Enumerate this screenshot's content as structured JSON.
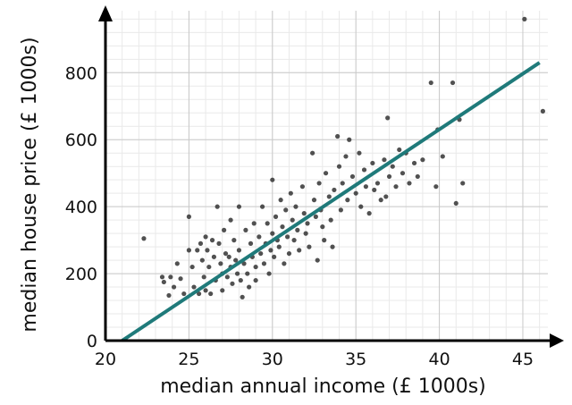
{
  "chart_data": {
    "type": "scatter",
    "title": "",
    "xlabel": "median annual income (£ 1000s)",
    "ylabel": "median house price (£ 1000s)",
    "xlim": [
      20,
      46.5
    ],
    "ylim": [
      0,
      985
    ],
    "x_ticks": [
      20,
      25,
      30,
      35,
      40,
      45
    ],
    "y_ticks": [
      0,
      200,
      400,
      600,
      800
    ],
    "grid": true,
    "minor_grid_step": {
      "x": 1,
      "y": 40
    },
    "colors": {
      "points": "#333333",
      "trend_line": "#1f7a7a",
      "grid_major": "#c9c9c9",
      "grid_minor": "#e9e9e9",
      "axis": "#000000"
    },
    "trend_line": {
      "x": [
        21,
        46
      ],
      "y": [
        0,
        830
      ]
    },
    "points": [
      [
        22.3,
        305
      ],
      [
        23.4,
        190
      ],
      [
        23.5,
        175
      ],
      [
        23.8,
        135
      ],
      [
        23.9,
        190
      ],
      [
        24.1,
        160
      ],
      [
        24.3,
        230
      ],
      [
        24.5,
        185
      ],
      [
        24.7,
        140
      ],
      [
        25.0,
        370
      ],
      [
        25.0,
        270
      ],
      [
        25.2,
        220
      ],
      [
        25.3,
        160
      ],
      [
        25.5,
        270
      ],
      [
        25.6,
        140
      ],
      [
        25.7,
        290
      ],
      [
        25.8,
        240
      ],
      [
        25.9,
        190
      ],
      [
        26.0,
        310
      ],
      [
        26.0,
        150
      ],
      [
        26.1,
        270
      ],
      [
        26.2,
        220
      ],
      [
        26.3,
        140
      ],
      [
        26.4,
        300
      ],
      [
        26.5,
        250
      ],
      [
        26.6,
        180
      ],
      [
        26.7,
        400
      ],
      [
        26.8,
        290
      ],
      [
        26.9,
        230
      ],
      [
        27.0,
        200
      ],
      [
        27.0,
        150
      ],
      [
        27.1,
        330
      ],
      [
        27.2,
        260
      ],
      [
        27.3,
        190
      ],
      [
        27.4,
        250
      ],
      [
        27.5,
        360
      ],
      [
        27.5,
        220
      ],
      [
        27.6,
        170
      ],
      [
        27.7,
        300
      ],
      [
        27.8,
        240
      ],
      [
        27.9,
        200
      ],
      [
        28.0,
        400
      ],
      [
        28.0,
        270
      ],
      [
        28.1,
        180
      ],
      [
        28.2,
        130
      ],
      [
        28.3,
        230
      ],
      [
        28.4,
        330
      ],
      [
        28.5,
        200
      ],
      [
        28.6,
        160
      ],
      [
        28.7,
        290
      ],
      [
        28.8,
        250
      ],
      [
        28.9,
        350
      ],
      [
        29.0,
        220
      ],
      [
        29.0,
        180
      ],
      [
        29.2,
        310
      ],
      [
        29.3,
        260
      ],
      [
        29.4,
        400
      ],
      [
        29.5,
        230
      ],
      [
        29.6,
        290
      ],
      [
        29.7,
        350
      ],
      [
        29.8,
        200
      ],
      [
        29.9,
        270
      ],
      [
        30.0,
        480
      ],
      [
        30.0,
        320
      ],
      [
        30.1,
        250
      ],
      [
        30.2,
        370
      ],
      [
        30.3,
        300
      ],
      [
        30.4,
        280
      ],
      [
        30.5,
        420
      ],
      [
        30.6,
        340
      ],
      [
        30.7,
        230
      ],
      [
        30.8,
        390
      ],
      [
        30.9,
        310
      ],
      [
        31.0,
        260
      ],
      [
        31.1,
        440
      ],
      [
        31.2,
        360
      ],
      [
        31.3,
        300
      ],
      [
        31.4,
        400
      ],
      [
        31.5,
        330
      ],
      [
        31.6,
        270
      ],
      [
        31.8,
        460
      ],
      [
        31.9,
        380
      ],
      [
        32.0,
        320
      ],
      [
        32.1,
        350
      ],
      [
        32.2,
        280
      ],
      [
        32.4,
        560
      ],
      [
        32.5,
        420
      ],
      [
        32.6,
        370
      ],
      [
        32.7,
        240
      ],
      [
        32.8,
        470
      ],
      [
        32.9,
        390
      ],
      [
        33.0,
        340
      ],
      [
        33.1,
        300
      ],
      [
        33.2,
        500
      ],
      [
        33.4,
        430
      ],
      [
        33.5,
        360
      ],
      [
        33.6,
        280
      ],
      [
        33.7,
        450
      ],
      [
        33.9,
        610
      ],
      [
        34.0,
        520
      ],
      [
        34.1,
        390
      ],
      [
        34.2,
        470
      ],
      [
        34.4,
        550
      ],
      [
        34.5,
        420
      ],
      [
        34.6,
        600
      ],
      [
        34.8,
        490
      ],
      [
        35.0,
        440
      ],
      [
        35.2,
        560
      ],
      [
        35.3,
        400
      ],
      [
        35.5,
        510
      ],
      [
        35.6,
        460
      ],
      [
        35.8,
        380
      ],
      [
        36.0,
        530
      ],
      [
        36.1,
        450
      ],
      [
        36.3,
        470
      ],
      [
        36.5,
        420
      ],
      [
        36.7,
        540
      ],
      [
        36.8,
        430
      ],
      [
        36.9,
        665
      ],
      [
        37.0,
        490
      ],
      [
        37.2,
        520
      ],
      [
        37.4,
        460
      ],
      [
        37.6,
        570
      ],
      [
        37.8,
        500
      ],
      [
        38.0,
        560
      ],
      [
        38.2,
        470
      ],
      [
        38.5,
        530
      ],
      [
        38.7,
        490
      ],
      [
        39.0,
        540
      ],
      [
        39.5,
        770
      ],
      [
        39.8,
        460
      ],
      [
        39.9,
        630
      ],
      [
        40.2,
        550
      ],
      [
        40.8,
        770
      ],
      [
        41.0,
        410
      ],
      [
        41.2,
        660
      ],
      [
        41.4,
        470
      ],
      [
        45.1,
        960
      ],
      [
        46.2,
        685
      ]
    ]
  }
}
